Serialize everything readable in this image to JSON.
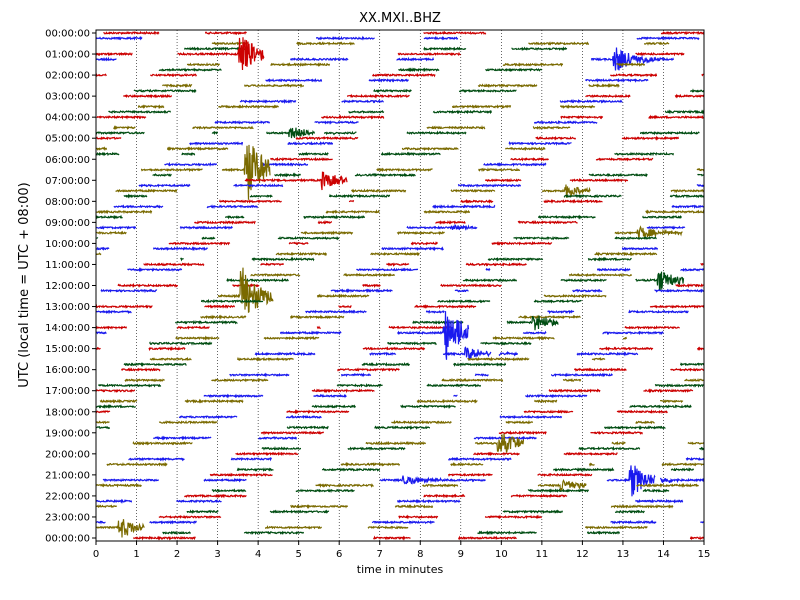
{
  "chart_data": {
    "type": "line",
    "title": "XX.MXI..BHZ",
    "xlabel": "time in minutes",
    "ylabel": "UTC (local time = UTC + 08:00)",
    "xlim": [
      0,
      15
    ],
    "x_ticks": [
      "0",
      "1",
      "2",
      "3",
      "4",
      "5",
      "6",
      "7",
      "8",
      "9",
      "10",
      "11",
      "12",
      "13",
      "14",
      "15"
    ],
    "y_ticks": [
      "00:00:00",
      "01:00:00",
      "02:00:00",
      "03:00:00",
      "04:00:00",
      "05:00:00",
      "06:00:00",
      "07:00:00",
      "08:00:00",
      "09:00:00",
      "10:00:00",
      "11:00:00",
      "12:00:00",
      "13:00:00",
      "14:00:00",
      "15:00:00",
      "16:00:00",
      "17:00:00",
      "18:00:00",
      "19:00:00",
      "20:00:00",
      "21:00:00",
      "22:00:00",
      "23:00:00",
      "00:00:00"
    ],
    "row_minutes": 15,
    "rows_per_hour": 4,
    "total_rows": 97,
    "grid": "vertical dotted at each minute",
    "colors": [
      "#cc0000",
      "#1a1aee",
      "#7a6a00",
      "#004d12"
    ],
    "events": [
      {
        "row": 4,
        "minute": 3.55,
        "amplitude": 3.0
      },
      {
        "row": 5,
        "minute": 12.8,
        "amplitude": 2.0
      },
      {
        "row": 19,
        "minute": 4.8,
        "amplitude": 1.0
      },
      {
        "row": 26,
        "minute": 3.7,
        "amplitude": 5.0
      },
      {
        "row": 28,
        "minute": 5.6,
        "amplitude": 1.3
      },
      {
        "row": 30,
        "minute": 11.6,
        "amplitude": 1.0
      },
      {
        "row": 37,
        "minute": 8.8,
        "amplitude": 0.4
      },
      {
        "row": 38,
        "minute": 13.4,
        "amplitude": 1.0
      },
      {
        "row": 47,
        "minute": 13.9,
        "amplitude": 1.5
      },
      {
        "row": 50,
        "minute": 3.6,
        "amplitude": 4.0
      },
      {
        "row": 55,
        "minute": 10.8,
        "amplitude": 1.2
      },
      {
        "row": 57,
        "minute": 8.6,
        "amplitude": 4.0
      },
      {
        "row": 61,
        "minute": 9.15,
        "amplitude": 1.0
      },
      {
        "row": 78,
        "minute": 9.95,
        "amplitude": 2.0
      },
      {
        "row": 85,
        "minute": 7.6,
        "amplitude": 0.8
      },
      {
        "row": 86,
        "minute": 11.5,
        "amplitude": 1.0
      },
      {
        "row": 85,
        "minute": 13.2,
        "amplitude": 2.5
      },
      {
        "row": 94,
        "minute": 0.6,
        "amplitude": 1.5
      }
    ]
  }
}
